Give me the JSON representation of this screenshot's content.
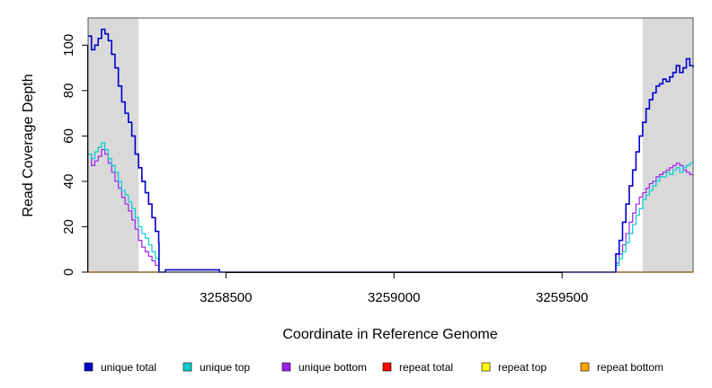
{
  "chart_data": {
    "type": "line",
    "title": "",
    "xlabel": "Coordinate in Reference Genome",
    "ylabel": "Read Coverage Depth",
    "xlim": [
      3258090,
      3259890
    ],
    "ylim": [
      0,
      112
    ],
    "x_ticks": [
      3258500,
      3259000,
      3259500
    ],
    "x_tick_labels": [
      "3258500",
      "3259000",
      "3259500"
    ],
    "y_ticks": [
      0,
      20,
      40,
      60,
      80,
      100
    ],
    "y_tick_labels": [
      "0",
      "20",
      "40",
      "60",
      "80",
      "100"
    ],
    "shaded_regions": [
      [
        3258090,
        3258240
      ],
      [
        3259740,
        3259890
      ]
    ],
    "grid": false,
    "legend_position": "bottom",
    "series": [
      {
        "name": "unique total",
        "color": "#0000CD",
        "x": [
          3258090,
          3258100,
          3258110,
          3258120,
          3258130,
          3258140,
          3258150,
          3258160,
          3258170,
          3258180,
          3258190,
          3258200,
          3258210,
          3258220,
          3258230,
          3258240,
          3258250,
          3258260,
          3258270,
          3258280,
          3258290,
          3258300,
          3258301,
          3258320,
          3258480,
          3258481,
          3259650,
          3259660,
          3259670,
          3259680,
          3259690,
          3259700,
          3259710,
          3259720,
          3259730,
          3259740,
          3259750,
          3259760,
          3259770,
          3259780,
          3259790,
          3259800,
          3259810,
          3259820,
          3259830,
          3259840,
          3259850,
          3259860,
          3259870,
          3259880,
          3259890
        ],
        "values": [
          104,
          98,
          100,
          103,
          107,
          105,
          102,
          96,
          90,
          82,
          75,
          70,
          66,
          60,
          52,
          46,
          40,
          35,
          30,
          24,
          18,
          13,
          0,
          1,
          1,
          0,
          0,
          8,
          14,
          22,
          30,
          38,
          45,
          53,
          60,
          66,
          72,
          76,
          79,
          82,
          83,
          85,
          84,
          86,
          88,
          91,
          88,
          90,
          94,
          91,
          90
        ]
      },
      {
        "name": "unique top",
        "color": "#00CED1",
        "x": [
          3258090,
          3258100,
          3258110,
          3258120,
          3258130,
          3258140,
          3258150,
          3258160,
          3258170,
          3258180,
          3258190,
          3258200,
          3258210,
          3258220,
          3258230,
          3258240,
          3258250,
          3258260,
          3258270,
          3258280,
          3258290,
          3258300,
          3258301,
          3259650,
          3259660,
          3259670,
          3259680,
          3259690,
          3259700,
          3259710,
          3259720,
          3259730,
          3259740,
          3259750,
          3259760,
          3259770,
          3259780,
          3259790,
          3259800,
          3259810,
          3259820,
          3259830,
          3259840,
          3259850,
          3259860,
          3259870,
          3259880,
          3259890
        ],
        "values": [
          52,
          50,
          53,
          55,
          57,
          54,
          50,
          47,
          44,
          40,
          36,
          34,
          31,
          28,
          24,
          20,
          17,
          15,
          12,
          9,
          6,
          4,
          0,
          0,
          3,
          6,
          9,
          13,
          17,
          21,
          25,
          28,
          32,
          34,
          36,
          38,
          40,
          42,
          42,
          44,
          43,
          45,
          46,
          44,
          46,
          47,
          48,
          49
        ]
      },
      {
        "name": "unique bottom",
        "color": "#A020F0",
        "x": [
          3258090,
          3258100,
          3258110,
          3258120,
          3258130,
          3258140,
          3258150,
          3258160,
          3258170,
          3258180,
          3258190,
          3258200,
          3258210,
          3258220,
          3258230,
          3258240,
          3258250,
          3258260,
          3258270,
          3258280,
          3258290,
          3258300,
          3258301,
          3259650,
          3259660,
          3259670,
          3259680,
          3259690,
          3259700,
          3259710,
          3259720,
          3259730,
          3259740,
          3259750,
          3259760,
          3259770,
          3259780,
          3259790,
          3259800,
          3259810,
          3259820,
          3259830,
          3259840,
          3259850,
          3259860,
          3259870,
          3259880,
          3259890
        ],
        "values": [
          52,
          47,
          49,
          51,
          54,
          52,
          48,
          44,
          40,
          37,
          33,
          30,
          27,
          23,
          19,
          14,
          11,
          9,
          7,
          5,
          3,
          2,
          0,
          0,
          4,
          8,
          12,
          17,
          22,
          26,
          30,
          33,
          35,
          37,
          39,
          40,
          42,
          43,
          44,
          45,
          46,
          47,
          48,
          47,
          45,
          44,
          43,
          42
        ]
      },
      {
        "name": "repeat total",
        "color": "#FF0000",
        "x": [
          3258090,
          3259890
        ],
        "values": [
          0,
          0
        ]
      },
      {
        "name": "repeat top",
        "color": "#FFFF00",
        "x": [
          3258090,
          3259890
        ],
        "values": [
          0,
          0
        ]
      },
      {
        "name": "repeat bottom",
        "color": "#FFA500",
        "x": [
          3258090,
          3259890
        ],
        "values": [
          0,
          0
        ]
      }
    ]
  }
}
